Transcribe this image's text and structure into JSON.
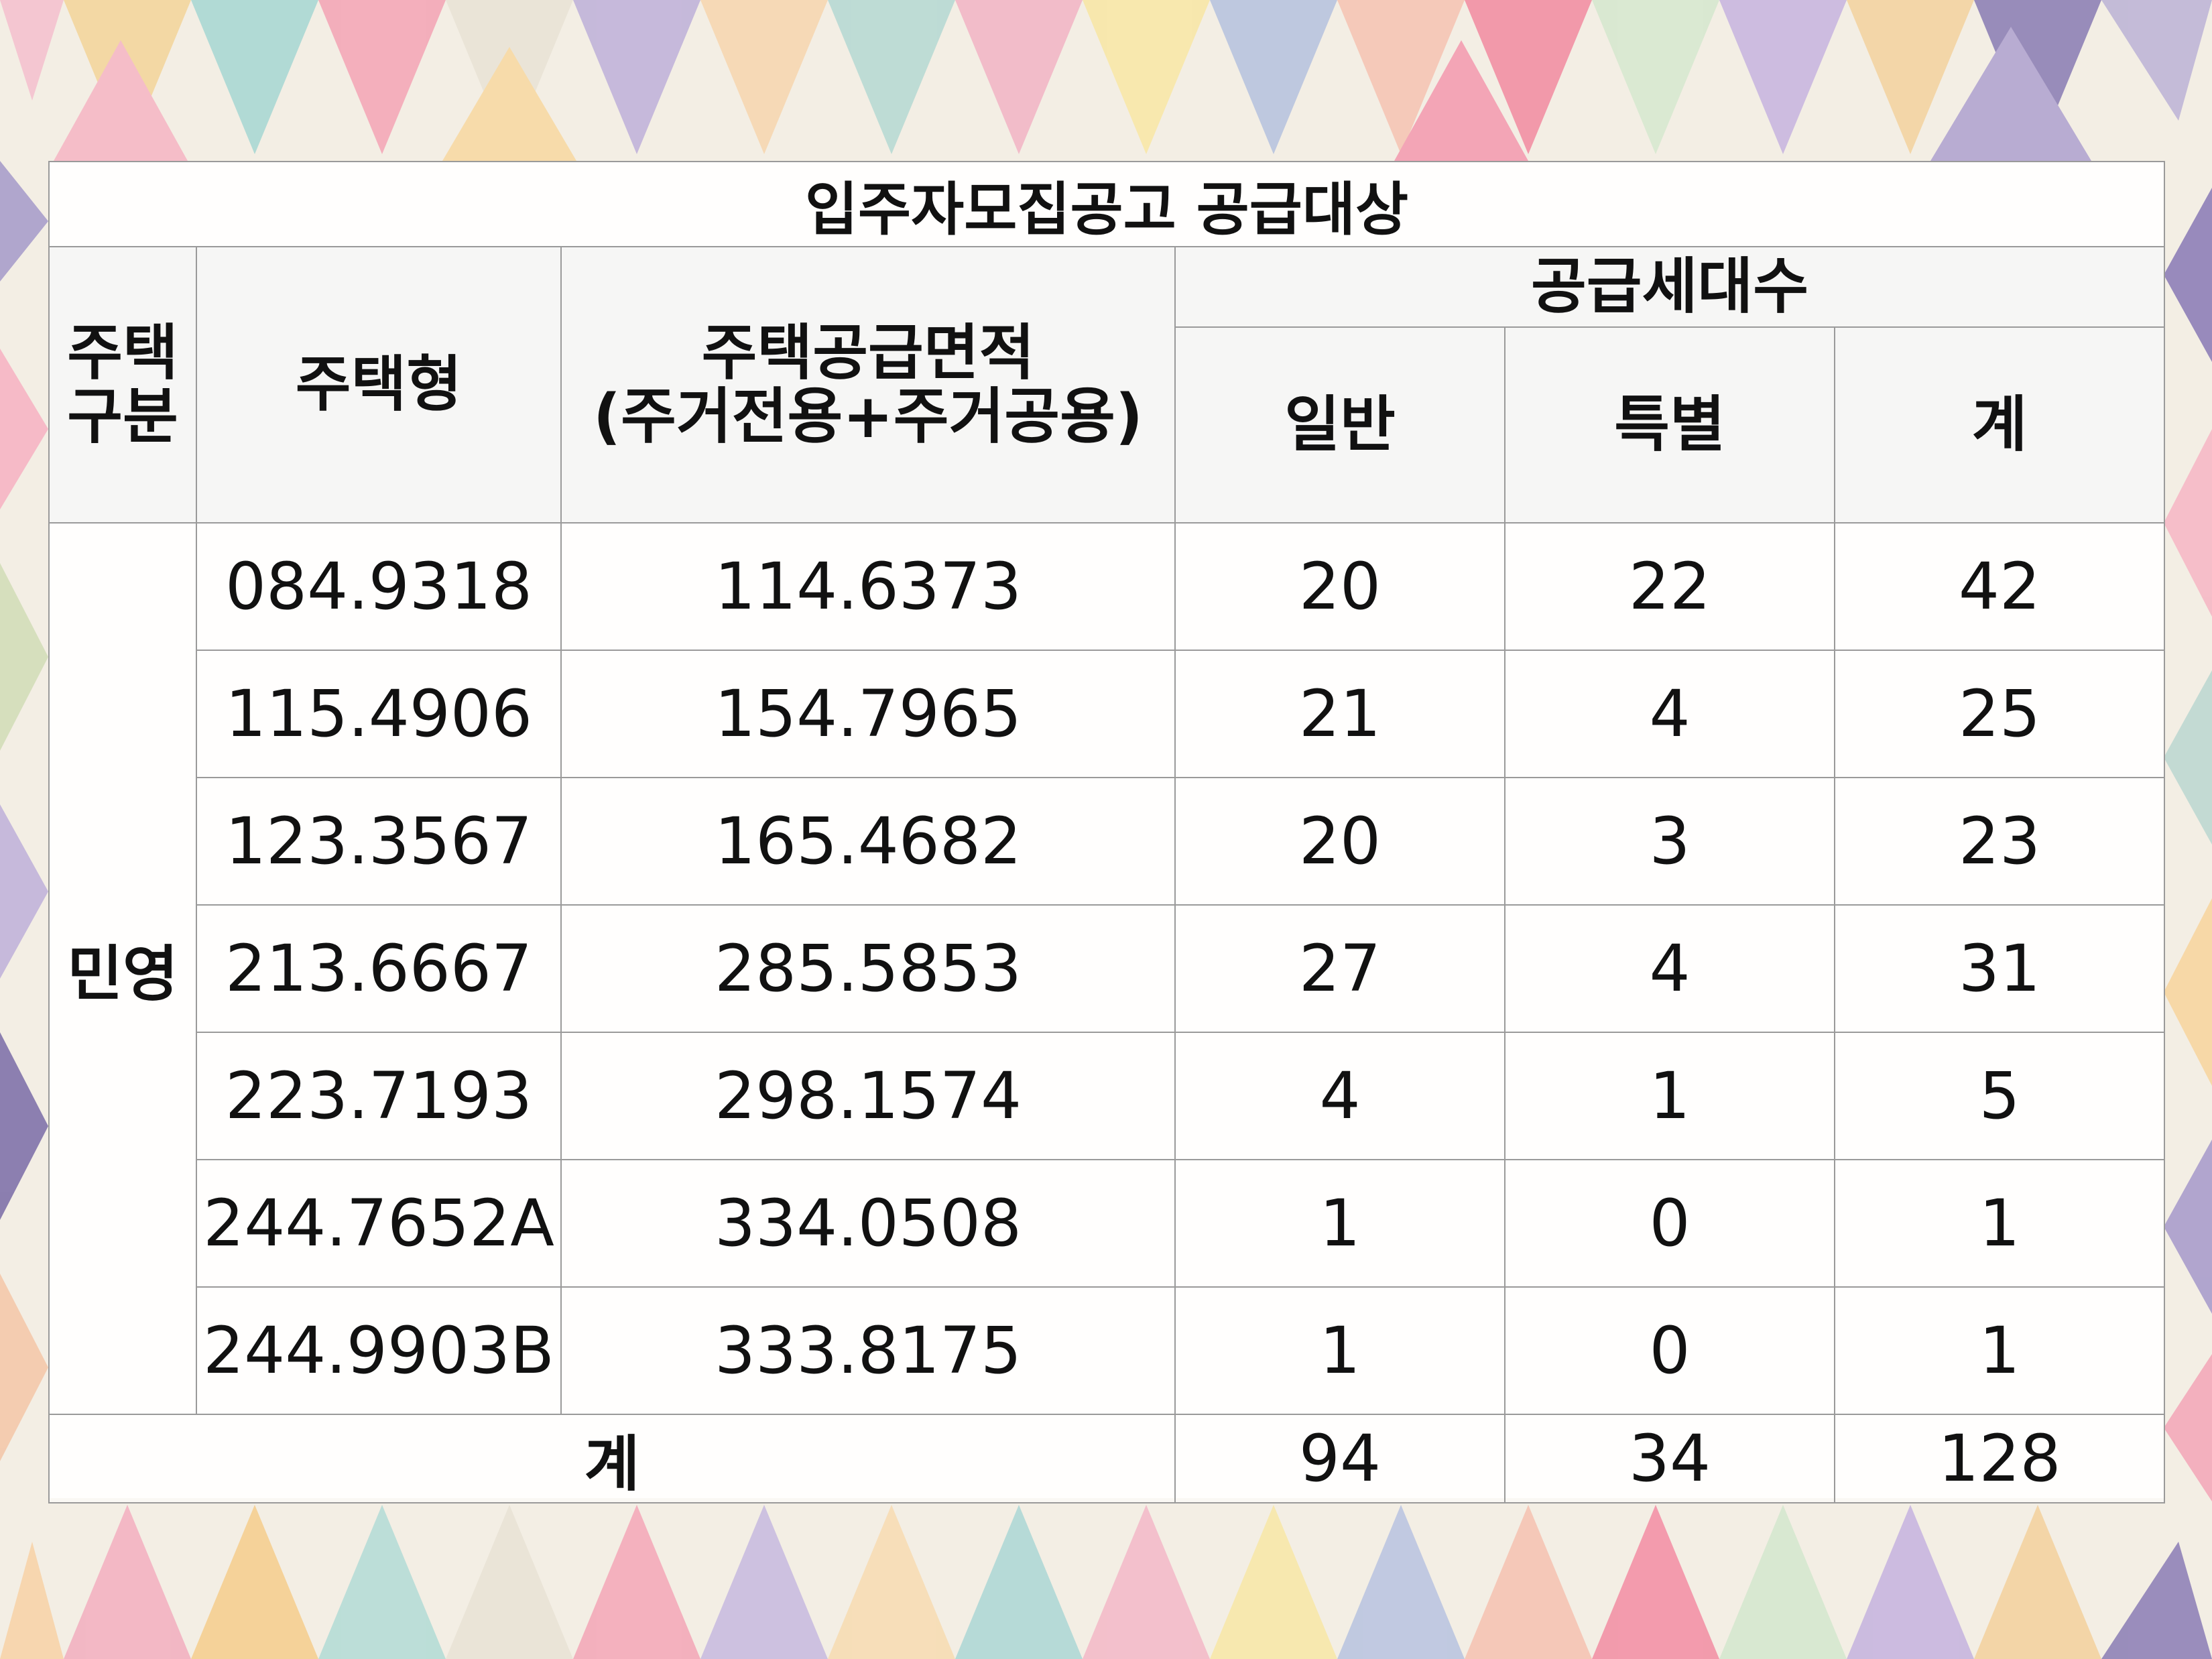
{
  "table": {
    "title": "입주자모집공고 공급대상",
    "headers": {
      "housing_category": "주택\n구분",
      "housing_type": "주택형",
      "supply_area": "주택공급면적\n(주거전용+주거공용)",
      "supply_units": "공급세대수",
      "general": "일반",
      "special": "특별",
      "total": "계"
    },
    "category_label": "민영",
    "rows": [
      {
        "type": "084.9318",
        "area": "114.6373",
        "general": "20",
        "special": "22",
        "total": "42"
      },
      {
        "type": "115.4906",
        "area": "154.7965",
        "general": "21",
        "special": "4",
        "total": "25"
      },
      {
        "type": "123.3567",
        "area": "165.4682",
        "general": "20",
        "special": "3",
        "total": "23"
      },
      {
        "type": "213.6667",
        "area": "285.5853",
        "general": "27",
        "special": "4",
        "total": "31"
      },
      {
        "type": "223.7193",
        "area": "298.1574",
        "general": "4",
        "special": "1",
        "total": "5"
      },
      {
        "type": "244.7652A",
        "area": "334.0508",
        "general": "1",
        "special": "0",
        "total": "1"
      },
      {
        "type": "244.9903B",
        "area": "333.8175",
        "general": "1",
        "special": "0",
        "total": "1"
      }
    ],
    "sum_row": {
      "label": "계",
      "general": "94",
      "special": "34",
      "total": "128"
    }
  }
}
